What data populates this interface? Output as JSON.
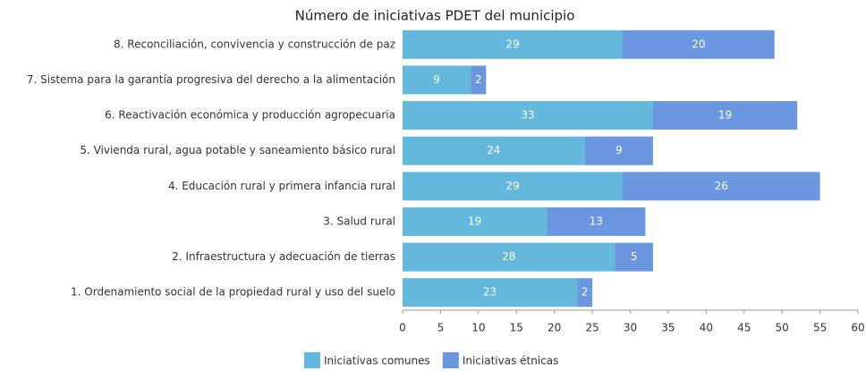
{
  "chart_data": {
    "type": "stacked_barh",
    "title": "Número de iniciativas PDET del municipio",
    "categories": [
      "8. Reconciliación, convivencia y construcción de paz",
      "7. Sistema para la garantía progresiva del derecho a la alimentación",
      "6. Reactivación económica y producción agropecuaria",
      "5. Vivienda rural, agua potable y saneamiento básico rural",
      "4. Educación rural y primera infancia rural",
      "3. Salud rural",
      "2. Infraestructura y adecuación de tierras",
      "1. Ordenamiento social de la propiedad rural y uso del suelo"
    ],
    "series": [
      {
        "name": "Iniciativas comunes",
        "color": "#63b8dc",
        "values": [
          29,
          9,
          33,
          24,
          29,
          19,
          28,
          23
        ]
      },
      {
        "name": "Iniciativas étnicas",
        "color": "#6b97e0",
        "values": [
          20,
          2,
          19,
          9,
          26,
          13,
          5,
          2
        ]
      }
    ],
    "xlim": [
      0,
      60
    ],
    "xticks": [
      0,
      5,
      10,
      15,
      20,
      25,
      30,
      35,
      40,
      45,
      50,
      55,
      60
    ],
    "legend": "bottom"
  }
}
